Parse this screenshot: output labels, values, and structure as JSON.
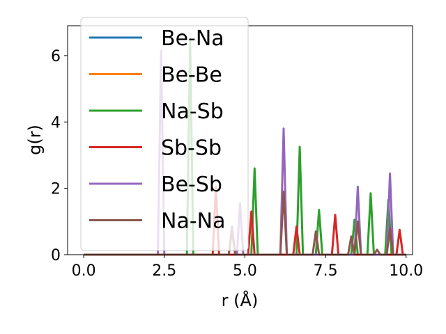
{
  "chart_data": {
    "type": "line",
    "xlabel": "r (Å)",
    "ylabel": "g(r)",
    "xlim": [
      -0.5,
      10.2
    ],
    "ylim": [
      0,
      6.9
    ],
    "xticks": [
      0.0,
      2.5,
      5.0,
      7.5,
      10.0
    ],
    "xtick_labels": [
      "0.0",
      "2.5",
      "5.0",
      "7.5",
      "10.0"
    ],
    "yticks": [
      0,
      2,
      4,
      6
    ],
    "ytick_labels": [
      "0",
      "2",
      "4",
      "6"
    ],
    "grid": false,
    "legend_position": "upper-left",
    "series": [
      {
        "name": "Be-Na",
        "color": "#1f77b4",
        "x": [
          0,
          10
        ],
        "y": [
          0,
          0
        ]
      },
      {
        "name": "Be-Be",
        "color": "#ff7f0e",
        "x": [
          0,
          10
        ],
        "y": [
          0,
          0
        ]
      },
      {
        "name": "Na-Sb",
        "color": "#2ca02c",
        "x": [
          0,
          3.2,
          3.3,
          3.4,
          5.2,
          5.3,
          5.4,
          6.6,
          6.7,
          6.8,
          7.2,
          7.3,
          7.4,
          8.3,
          8.4,
          8.5,
          8.8,
          8.9,
          9.0,
          9.35,
          9.45,
          9.55,
          10
        ],
        "y": [
          0,
          0,
          6.5,
          0,
          0,
          2.6,
          0,
          0,
          3.25,
          0,
          0,
          1.35,
          0,
          0,
          1.05,
          0,
          0,
          1.85,
          0,
          0,
          1.65,
          0,
          0
        ]
      },
      {
        "name": "Sb-Sb",
        "color": "#d62728",
        "x": [
          0,
          4.0,
          4.1,
          4.2,
          5.1,
          5.2,
          5.3,
          6.5,
          6.6,
          6.7,
          7.7,
          7.8,
          7.9,
          9.7,
          9.8,
          9.9,
          10
        ],
        "y": [
          0,
          0,
          2.05,
          0,
          0,
          1.3,
          0,
          0,
          0.85,
          0,
          0,
          1.2,
          0,
          0,
          0.75,
          0,
          0
        ]
      },
      {
        "name": "Be-Sb",
        "color": "#9467bd",
        "x": [
          0,
          2.3,
          2.4,
          2.5,
          4.5,
          4.6,
          4.7,
          4.75,
          4.85,
          4.95,
          6.1,
          6.2,
          6.3,
          8.4,
          8.5,
          8.6,
          9.4,
          9.5,
          9.6,
          10
        ],
        "y": [
          0,
          0,
          6.15,
          0,
          0,
          0.85,
          0,
          0,
          1.55,
          0,
          0,
          3.8,
          0,
          0,
          2.05,
          0,
          0,
          2.45,
          0,
          0
        ]
      },
      {
        "name": "Na-Na",
        "color": "#8c564b",
        "x": [
          0,
          4.5,
          4.6,
          4.7,
          6.1,
          6.2,
          6.3,
          7.1,
          7.2,
          7.3,
          8.2,
          8.3,
          8.4,
          8.5,
          8.6,
          9.0,
          9.1,
          9.2,
          9.4,
          9.5,
          9.6,
          10
        ],
        "y": [
          0,
          0,
          0.75,
          0,
          0,
          1.9,
          0,
          0,
          0.7,
          0,
          0,
          0.55,
          0,
          1.0,
          0,
          0,
          0.15,
          0,
          0,
          0.8,
          0,
          0
        ]
      }
    ]
  }
}
